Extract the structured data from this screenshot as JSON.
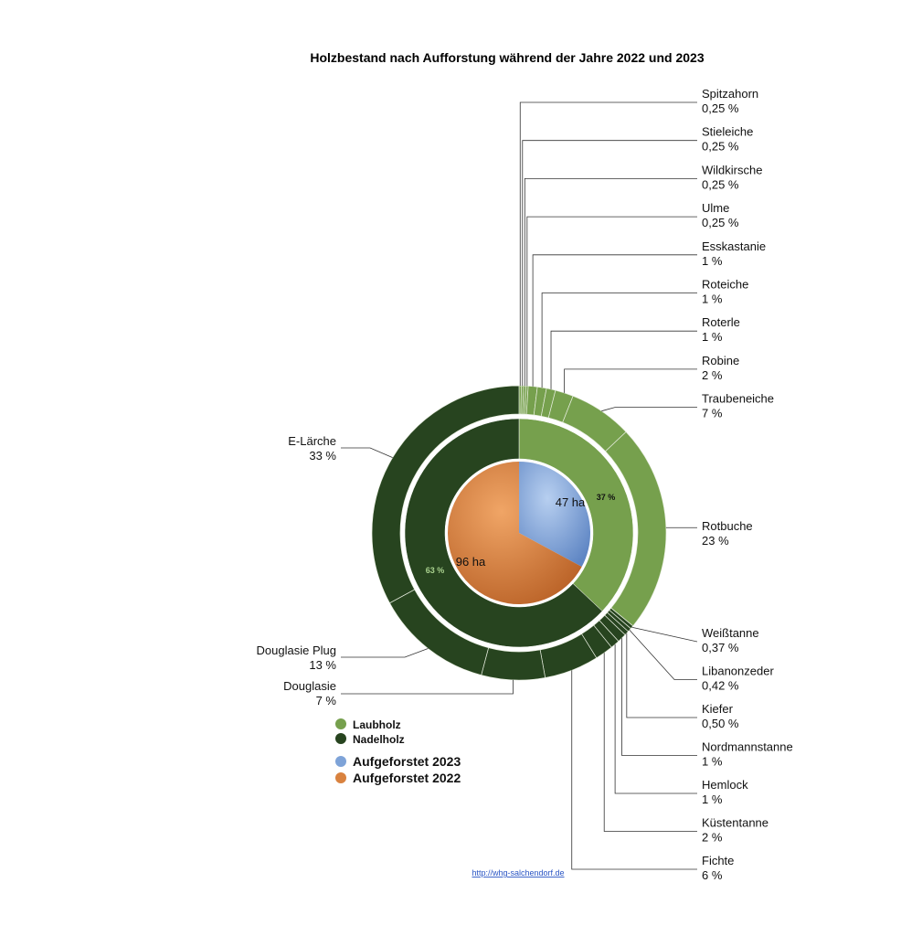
{
  "colors": {
    "laubholz": "#76a04d",
    "nadelholz": "#27441f",
    "aufgeforstet_2023": "#7ea3d8",
    "aufgeforstet_2022": "#d9823f"
  },
  "footer": {
    "link_text": "http://whg-salchendorf.de"
  },
  "chart_data": {
    "type": "pie",
    "title": "Holzbestand nach Aufforstung während der Jahre 2022 und 2023",
    "inner_pie": [
      {
        "name": "Aufgeforstet 2023",
        "value": 47,
        "label": "47 ha",
        "color": "#7ea3d8"
      },
      {
        "name": "Aufgeforstet 2022",
        "value": 96,
        "label": "96 ha",
        "color": "#d9823f"
      }
    ],
    "middle_ring": [
      {
        "name": "Laubholz",
        "value": 37,
        "label": "37 %",
        "color": "#76a04d"
      },
      {
        "name": "Nadelholz",
        "value": 63,
        "label": "63 %",
        "color": "#27441f"
      }
    ],
    "outer_ring": [
      {
        "name": "Spitzahorn",
        "value": 0.25,
        "label": "0,25 %",
        "group": "Laubholz"
      },
      {
        "name": "Stieleiche",
        "value": 0.25,
        "label": "0,25 %",
        "group": "Laubholz"
      },
      {
        "name": "Wildkirsche",
        "value": 0.25,
        "label": "0,25 %",
        "group": "Laubholz"
      },
      {
        "name": "Ulme",
        "value": 0.25,
        "label": "0,25 %",
        "group": "Laubholz"
      },
      {
        "name": "Esskastanie",
        "value": 1,
        "label": "1 %",
        "group": "Laubholz"
      },
      {
        "name": "Roteiche",
        "value": 1,
        "label": "1 %",
        "group": "Laubholz"
      },
      {
        "name": "Roterle",
        "value": 1,
        "label": "1 %",
        "group": "Laubholz"
      },
      {
        "name": "Robine",
        "value": 2,
        "label": "2 %",
        "group": "Laubholz"
      },
      {
        "name": "Traubeneiche",
        "value": 7,
        "label": "7 %",
        "group": "Laubholz"
      },
      {
        "name": "Rotbuche",
        "value": 23,
        "label": "23 %",
        "group": "Laubholz"
      },
      {
        "name": "Weißtanne",
        "value": 0.37,
        "label": "0,37 %",
        "group": "Nadelholz"
      },
      {
        "name": "Libanonzeder",
        "value": 0.42,
        "label": "0,42 %",
        "group": "Nadelholz"
      },
      {
        "name": "Kiefer",
        "value": 0.5,
        "label": "0,50 %",
        "group": "Nadelholz"
      },
      {
        "name": "Nordmannstanne",
        "value": 1,
        "label": "1 %",
        "group": "Nadelholz"
      },
      {
        "name": "Hemlock",
        "value": 1,
        "label": "1 %",
        "group": "Nadelholz"
      },
      {
        "name": "Küstentanne",
        "value": 2,
        "label": "2 %",
        "group": "Nadelholz"
      },
      {
        "name": "Fichte",
        "value": 6,
        "label": "6 %",
        "group": "Nadelholz"
      },
      {
        "name": "Douglasie",
        "value": 7,
        "label": "7 %",
        "group": "Nadelholz"
      },
      {
        "name": "Douglasie Plug",
        "value": 13,
        "label": "13 %",
        "group": "Nadelholz"
      },
      {
        "name": "E-Lärche",
        "value": 33,
        "label": "33 %",
        "group": "Nadelholz"
      }
    ],
    "legend": [
      {
        "name": "Laubholz",
        "color": "#76a04d"
      },
      {
        "name": "Nadelholz",
        "color": "#27441f"
      },
      {
        "name": "Aufgeforstet 2023",
        "color": "#7ea3d8"
      },
      {
        "name": "Aufgeforstet 2022",
        "color": "#d9823f"
      }
    ],
    "legend_position": "bottom-left"
  }
}
